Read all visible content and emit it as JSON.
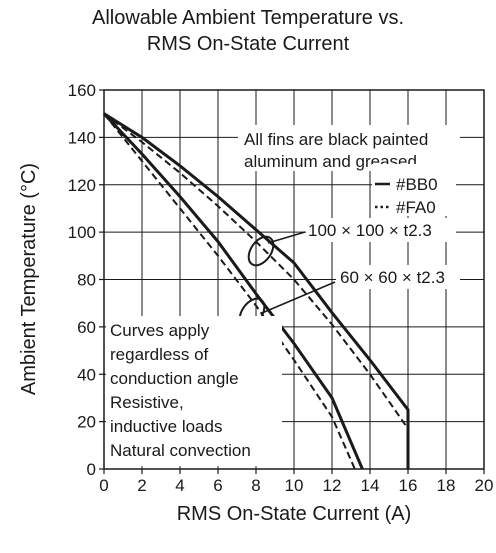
{
  "chart_data": {
    "type": "line",
    "title_lines": [
      "Allowable Ambient Temperature vs.",
      "RMS On-State Current"
    ],
    "xlabel": "RMS On-State Current  (A)",
    "ylabel": "Ambient Temperature  (°C)",
    "xlim": [
      0,
      20
    ],
    "ylim": [
      0,
      160
    ],
    "x_ticks": [
      "0",
      "2",
      "4",
      "6",
      "8",
      "10",
      "12",
      "14",
      "16",
      "18",
      "20"
    ],
    "y_ticks": [
      "0",
      "20",
      "40",
      "60",
      "80",
      "100",
      "120",
      "140",
      "160"
    ],
    "grid": true,
    "legend": [
      {
        "symbol": "—",
        "label": "#BB0"
      },
      {
        "symbol": "···",
        "label": "#FA0"
      }
    ],
    "annotations": {
      "fins_lines": [
        "All fins are black painted",
        "aluminum and greased"
      ],
      "heatsink_100": "100 × 100 × t2.3",
      "heatsink_60": "60 × 60 × t2.3",
      "conditions_lines": [
        "Curves apply",
        "regardless of",
        "conduction angle",
        "Resistive,",
        "inductive loads",
        "Natural convection"
      ]
    },
    "series": [
      {
        "line": "solid",
        "heatsink": "100 × 100 × t2.3",
        "points": [
          [
            0,
            150
          ],
          [
            2,
            140
          ],
          [
            4,
            128
          ],
          [
            6,
            115
          ],
          [
            8,
            101
          ],
          [
            10,
            87
          ],
          [
            12,
            66
          ],
          [
            14,
            46
          ],
          [
            16,
            25
          ],
          [
            16,
            0
          ]
        ]
      },
      {
        "line": "dashed",
        "heatsink": "100 × 100 × t2.3",
        "points": [
          [
            0,
            150
          ],
          [
            2,
            138
          ],
          [
            4,
            125
          ],
          [
            6,
            111
          ],
          [
            8,
            96
          ],
          [
            10,
            80
          ],
          [
            12,
            61
          ],
          [
            14,
            40
          ],
          [
            16,
            17
          ],
          [
            16,
            0
          ]
        ]
      },
      {
        "line": "solid",
        "heatsink": "60 × 60 × t2.3",
        "points": [
          [
            0,
            150
          ],
          [
            2,
            133
          ],
          [
            4,
            115
          ],
          [
            6,
            96
          ],
          [
            8,
            74
          ],
          [
            10,
            53
          ],
          [
            12,
            30
          ],
          [
            13.6,
            0
          ]
        ]
      },
      {
        "line": "dashed",
        "heatsink": "60 × 60 × t2.3",
        "points": [
          [
            0,
            150
          ],
          [
            2,
            130
          ],
          [
            4,
            110
          ],
          [
            6,
            90
          ],
          [
            8,
            69
          ],
          [
            10,
            46
          ],
          [
            12,
            22
          ],
          [
            13.2,
            0
          ]
        ]
      }
    ]
  }
}
